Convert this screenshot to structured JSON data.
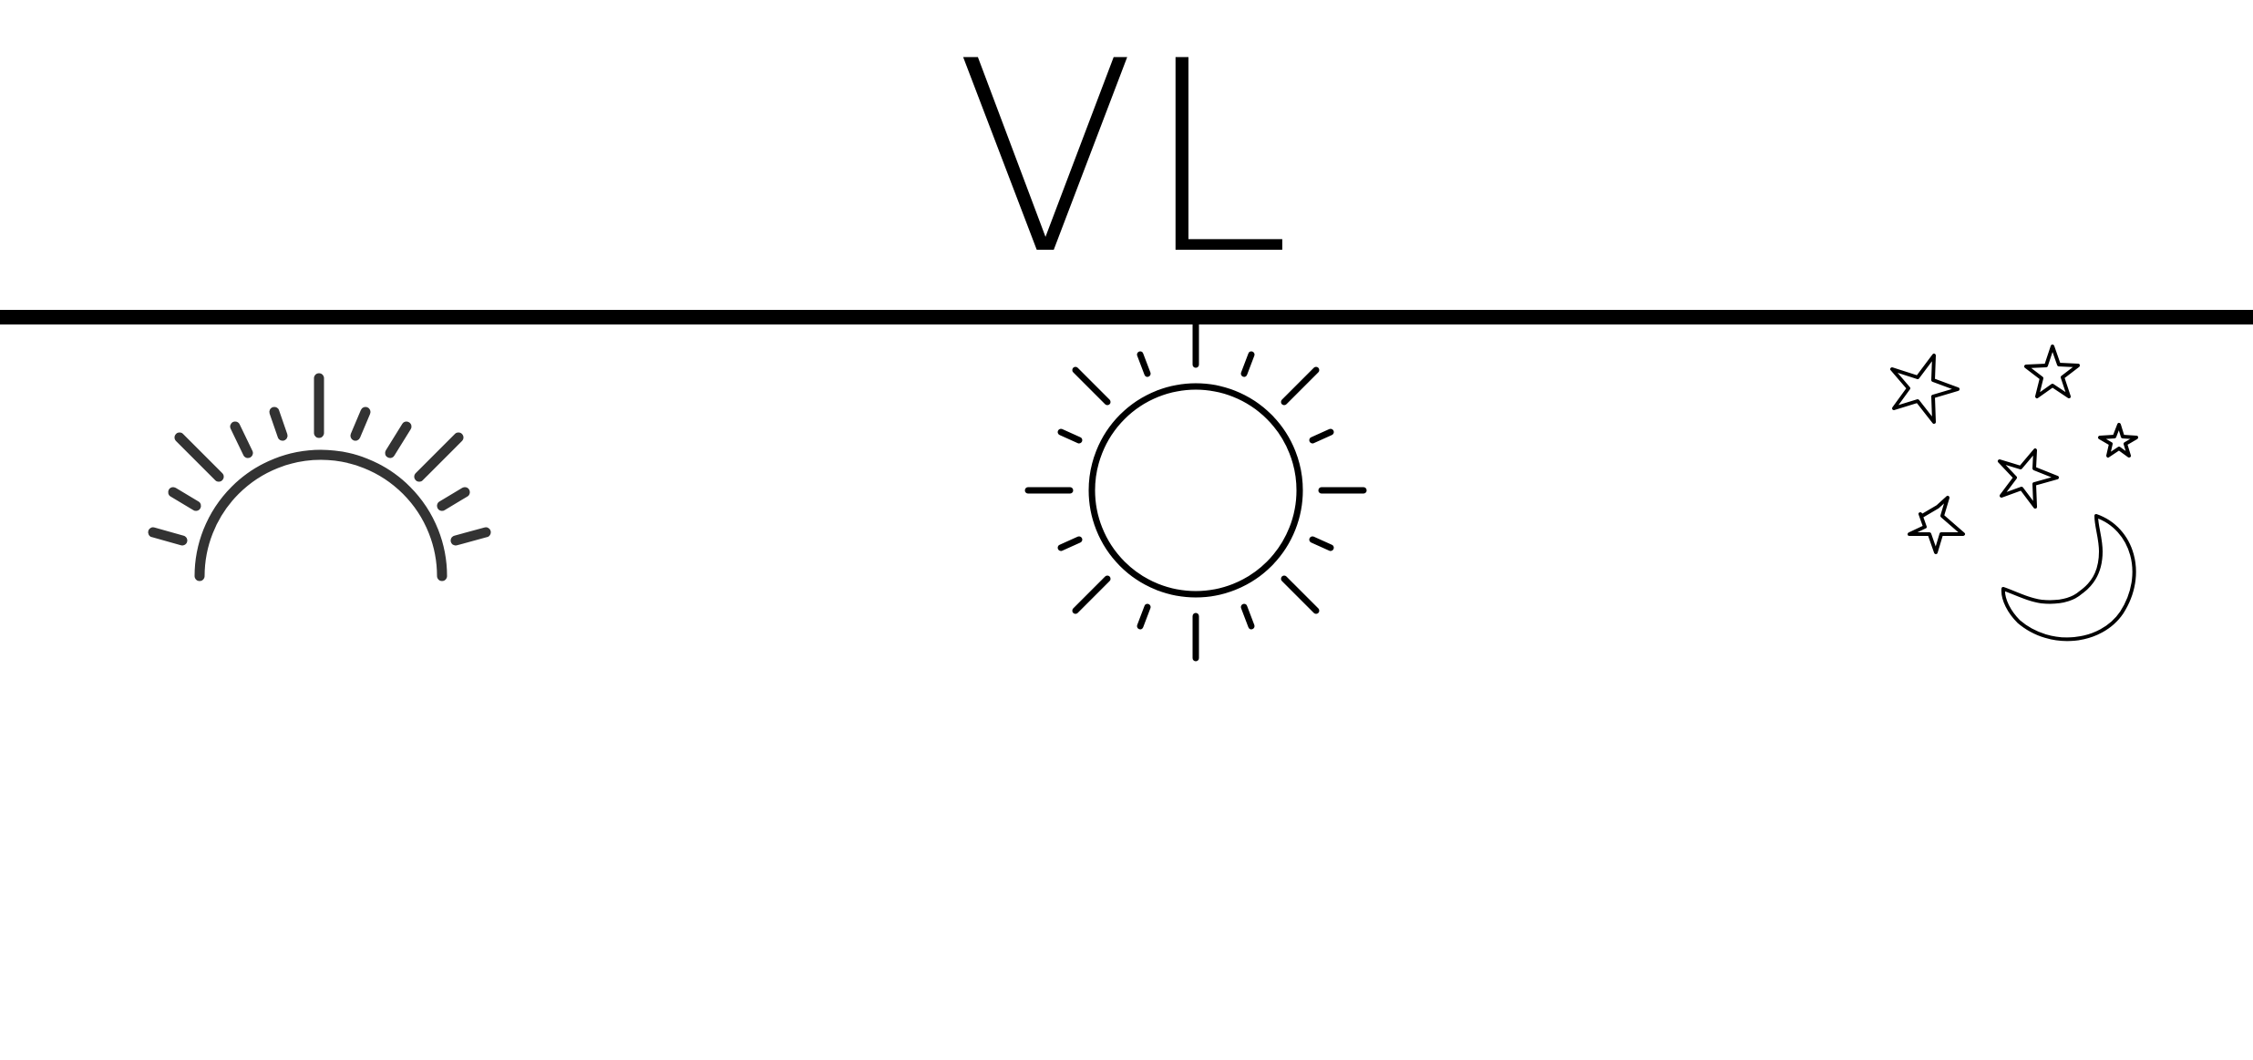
{
  "logo": {
    "text": "VL"
  },
  "icons": {
    "sunrise": "sunrise-icon",
    "sun": "sun-icon",
    "night": "moon-and-stars-icon"
  },
  "colors": {
    "background": "#ffffff",
    "foreground": "#000000",
    "sunrise_stroke": "#333333"
  }
}
